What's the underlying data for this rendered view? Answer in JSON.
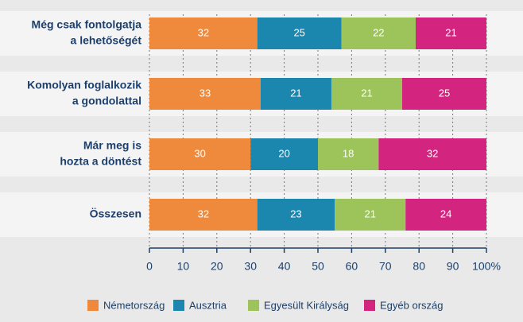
{
  "chart_data": {
    "type": "stacked_bar_horizontal",
    "categories": [
      [
        "Még csak fontolgatja",
        "a lehetőségét"
      ],
      [
        "Komolyan foglalkozik",
        "a gondolattal"
      ],
      [
        "Már meg is",
        "hozta a döntést"
      ],
      [
        "Összesen"
      ]
    ],
    "series": [
      {
        "name": "Németország",
        "color": "#ef8a3c",
        "values": [
          32,
          33,
          30,
          32
        ]
      },
      {
        "name": "Ausztria",
        "color": "#1b86ae",
        "values": [
          25,
          21,
          20,
          23
        ]
      },
      {
        "name": "Egyesült Királyság",
        "color": "#9dc35b",
        "values": [
          22,
          21,
          18,
          21
        ]
      },
      {
        "name": "Egyéb ország",
        "color": "#d3257f",
        "values": [
          21,
          25,
          32,
          24
        ]
      }
    ],
    "xlim": [
      0,
      100
    ],
    "xticks": [
      0,
      10,
      20,
      30,
      40,
      50,
      60,
      70,
      80,
      90,
      {
        "value": 100,
        "label": "100%"
      }
    ],
    "grid": true,
    "legend": "bottom"
  }
}
